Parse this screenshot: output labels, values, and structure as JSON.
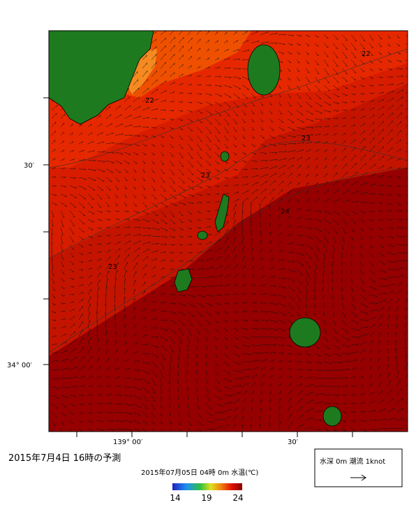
{
  "map": {
    "lat_labels": [
      "30′",
      "34° 00′"
    ],
    "lon_labels": [
      "139° 00′",
      "30′"
    ],
    "contour_labels": [
      "22",
      "22",
      "23",
      "23",
      "24",
      "23"
    ]
  },
  "caption": "2015年7月4日  16時の予測",
  "colorbar": {
    "title": "2015年07月05日 04時 0m 水温(℃)",
    "ticks": [
      "14",
      "19",
      "24"
    ]
  },
  "current_legend": {
    "label": "水深 0m 潮流 1knot"
  }
}
